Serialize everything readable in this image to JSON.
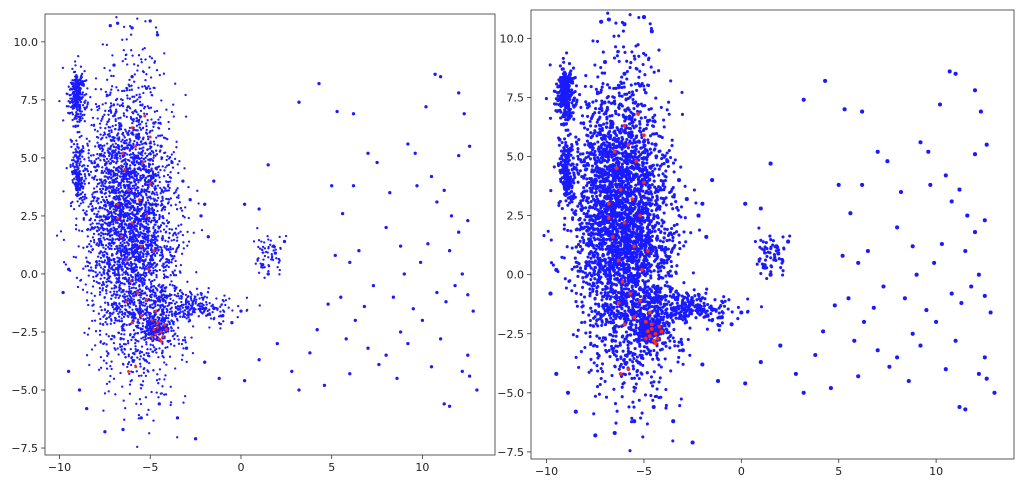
{
  "figure": {
    "panels": [
      "left",
      "right"
    ]
  },
  "chart_data": [
    {
      "type": "scatter",
      "panel": "left",
      "title": "",
      "xlabel": "",
      "ylabel": "",
      "xlim": [
        -10.8,
        14.0
      ],
      "ylim": [
        -7.8,
        11.2
      ],
      "x_ticks": [
        -10,
        -5,
        0,
        5,
        10
      ],
      "y_ticks": [
        -7.5,
        -5.0,
        -2.5,
        0.0,
        2.5,
        5.0,
        7.5,
        10.0
      ],
      "x_tick_labels": [
        "−10",
        "−5",
        "0",
        "5",
        "10"
      ],
      "y_tick_labels": [
        "−7.5",
        "−5.0",
        "−2.5",
        "0.0",
        "2.5",
        "5.0",
        "7.5",
        "10.0"
      ],
      "grid": false,
      "legend": "none",
      "series": [
        {
          "color": "#1a1aff",
          "points": [
            [
              -9.1,
              8.0
            ],
            [
              -9.0,
              7.6
            ],
            [
              -8.9,
              7.2
            ],
            [
              -9.0,
              5.0
            ],
            [
              -9.0,
              4.3
            ],
            [
              -8.8,
              3.8
            ],
            [
              -7.2,
              10.7
            ],
            [
              -6.8,
              10.8
            ],
            [
              -6.0,
              10.6
            ],
            [
              -5.0,
              10.9
            ],
            [
              -4.6,
              10.3
            ],
            [
              -7.0,
              9.0
            ],
            [
              -6.0,
              8.5
            ],
            [
              -5.2,
              8.0
            ],
            [
              -4.8,
              6.5
            ],
            [
              -4.4,
              5.5
            ],
            [
              -3.8,
              4.8
            ],
            [
              -3.2,
              4.0
            ],
            [
              -2.8,
              3.2
            ],
            [
              -2.2,
              2.5
            ],
            [
              -1.8,
              1.6
            ],
            [
              -1.5,
              4.0
            ],
            [
              -2.0,
              3.0
            ],
            [
              0.2,
              3.0
            ],
            [
              1.0,
              2.8
            ],
            [
              1.5,
              4.7
            ],
            [
              1.8,
              1.2
            ],
            [
              2.4,
              1.4
            ],
            [
              1.2,
              0.4
            ],
            [
              1.9,
              0.9
            ],
            [
              1.5,
              0.0
            ],
            [
              -4.5,
              -1.0
            ],
            [
              -3.0,
              -1.2
            ],
            [
              -2.0,
              -1.5
            ],
            [
              -1.0,
              -1.8
            ],
            [
              0.0,
              -1.6
            ],
            [
              -0.5,
              -2.1
            ],
            [
              -3.0,
              -3.2
            ],
            [
              -2.0,
              -3.8
            ],
            [
              -1.2,
              -4.5
            ],
            [
              0.2,
              -4.6
            ],
            [
              1.0,
              -3.7
            ],
            [
              2.0,
              -3.0
            ],
            [
              2.8,
              -4.2
            ],
            [
              3.2,
              -5.0
            ],
            [
              3.8,
              -3.4
            ],
            [
              4.2,
              -2.4
            ],
            [
              -2.5,
              -7.1
            ],
            [
              -3.5,
              -6.2
            ],
            [
              -4.5,
              -5.6
            ],
            [
              -5.5,
              -6.2
            ],
            [
              -6.5,
              -6.7
            ],
            [
              -7.5,
              -6.8
            ],
            [
              -8.5,
              -5.8
            ],
            [
              -8.9,
              -5.0
            ],
            [
              -9.5,
              -4.2
            ],
            [
              -9.8,
              -0.8
            ],
            [
              -9.5,
              0.2
            ],
            [
              3.2,
              7.4
            ],
            [
              4.3,
              8.2
            ],
            [
              5.3,
              7.0
            ],
            [
              6.2,
              6.9
            ],
            [
              5.6,
              2.6
            ],
            [
              5.0,
              3.8
            ],
            [
              6.2,
              3.8
            ],
            [
              6.5,
              1.0
            ],
            [
              6.0,
              0.5
            ],
            [
              5.5,
              -1.0
            ],
            [
              6.3,
              -2.0
            ],
            [
              5.8,
              -2.8
            ],
            [
              7.0,
              5.2
            ],
            [
              7.5,
              4.8
            ],
            [
              8.2,
              3.5
            ],
            [
              8.0,
              2.0
            ],
            [
              8.8,
              1.2
            ],
            [
              9.2,
              5.6
            ],
            [
              9.6,
              5.2
            ],
            [
              10.2,
              7.2
            ],
            [
              10.7,
              8.6
            ],
            [
              11.0,
              8.5
            ],
            [
              12.0,
              7.8
            ],
            [
              12.3,
              6.9
            ],
            [
              12.6,
              5.5
            ],
            [
              12.0,
              5.1
            ],
            [
              10.5,
              4.2
            ],
            [
              11.2,
              3.6
            ],
            [
              11.6,
              2.5
            ],
            [
              12.0,
              1.8
            ],
            [
              11.5,
              1.0
            ],
            [
              12.2,
              0.0
            ],
            [
              11.8,
              -0.5
            ],
            [
              10.8,
              -0.8
            ],
            [
              11.3,
              -1.2
            ],
            [
              12.5,
              -0.9
            ],
            [
              9.5,
              -1.5
            ],
            [
              10.0,
              -2.0
            ],
            [
              8.8,
              -2.5
            ],
            [
              9.2,
              -3.0
            ],
            [
              8.0,
              -3.5
            ],
            [
              7.6,
              -3.9
            ],
            [
              7.0,
              -3.2
            ],
            [
              8.6,
              -4.5
            ],
            [
              10.5,
              -4.0
            ],
            [
              11.2,
              -5.6
            ],
            [
              11.5,
              -5.7
            ],
            [
              12.2,
              -4.2
            ],
            [
              12.6,
              -4.4
            ],
            [
              13.0,
              -5.0
            ],
            [
              12.5,
              -3.5
            ],
            [
              9.9,
              0.5
            ],
            [
              10.3,
              1.3
            ],
            [
              9.0,
              0.0
            ],
            [
              8.4,
              -1.0
            ],
            [
              7.3,
              -0.5
            ],
            [
              4.8,
              -1.3
            ],
            [
              4.6,
              -4.8
            ],
            [
              6.0,
              -4.3
            ],
            [
              6.8,
              -1.4
            ],
            [
              5.2,
              0.8
            ],
            [
              10.8,
              3.1
            ],
            [
              12.5,
              2.3
            ],
            [
              11.0,
              -2.8
            ],
            [
              12.8,
              -1.6
            ],
            [
              9.7,
              3.8
            ]
          ]
        },
        {
          "color": "#ff2a10",
          "points": [
            [
              -6.0,
              6.3
            ],
            [
              -5.8,
              5.5
            ],
            [
              -5.4,
              4.8
            ],
            [
              -6.4,
              4.5
            ],
            [
              -5.0,
              3.9
            ],
            [
              -6.2,
              3.6
            ],
            [
              -5.6,
              3.2
            ],
            [
              -6.8,
              3.0
            ],
            [
              -5.2,
              2.5
            ],
            [
              -6.0,
              2.2
            ],
            [
              -6.6,
              1.6
            ],
            [
              -5.5,
              1.2
            ],
            [
              -4.8,
              1.0
            ],
            [
              -6.3,
              0.6
            ],
            [
              -5.1,
              0.2
            ],
            [
              -6.1,
              -0.3
            ],
            [
              -5.7,
              -0.8
            ],
            [
              -6.3,
              -1.2
            ],
            [
              -5.2,
              -1.1
            ],
            [
              -4.7,
              -1.6
            ],
            [
              -5.5,
              -1.8
            ],
            [
              -6.0,
              -2.1
            ],
            [
              -4.9,
              -2.0
            ],
            [
              -4.6,
              -2.3
            ],
            [
              -4.4,
              -2.5
            ],
            [
              -4.7,
              -2.6
            ],
            [
              -4.2,
              -2.2
            ],
            [
              -4.5,
              -2.8
            ],
            [
              -4.8,
              -2.4
            ],
            [
              -4.3,
              -2.7
            ],
            [
              -4.1,
              -2.4
            ],
            [
              -4.6,
              -2.1
            ],
            [
              -4.4,
              -2.9
            ],
            [
              -4.9,
              -2.7
            ],
            [
              -5.8,
              -4.0
            ],
            [
              -6.2,
              -4.2
            ],
            [
              -5.0,
              5.9
            ],
            [
              -6.5,
              5.2
            ],
            [
              -5.3,
              6.8
            ],
            [
              -6.8,
              2.4
            ]
          ]
        }
      ],
      "clusters": [
        {
          "color": "#1a1aff",
          "center": [
            -6.3,
            3.0
          ],
          "spread": [
            1.2,
            2.6
          ],
          "count": 2600
        },
        {
          "color": "#1a1aff",
          "center": [
            -5.4,
            -0.8
          ],
          "spread": [
            1.2,
            2.2
          ],
          "count": 900
        },
        {
          "color": "#1a1aff",
          "center": [
            -9.0,
            7.6
          ],
          "spread": [
            0.25,
            0.55
          ],
          "count": 260
        },
        {
          "color": "#1a1aff",
          "center": [
            -9.0,
            4.3
          ],
          "spread": [
            0.2,
            0.6
          ],
          "count": 160
        },
        {
          "color": "#1a1aff",
          "center": [
            -3.0,
            -1.5
          ],
          "spread": [
            1.3,
            0.35
          ],
          "count": 260
        },
        {
          "color": "#1a1aff",
          "center": [
            1.5,
            0.9
          ],
          "spread": [
            0.45,
            0.45
          ],
          "count": 60
        },
        {
          "color": "#1a1aff",
          "center": [
            -4.6,
            -2.3
          ],
          "spread": [
            0.35,
            0.3
          ],
          "count": 180
        }
      ]
    },
    {
      "type": "scatter",
      "panel": "right",
      "title": "",
      "xlabel": "",
      "ylabel": "",
      "xlim": [
        -10.8,
        14.0
      ],
      "ylim": [
        -7.8,
        11.2
      ],
      "x_ticks": [
        -10,
        -5,
        0,
        5,
        10
      ],
      "y_ticks": [
        -7.5,
        -5.0,
        -2.5,
        0.0,
        2.5,
        5.0,
        7.5,
        10.0
      ],
      "x_tick_labels": [
        "−10",
        "−5",
        "0",
        "5",
        "10"
      ],
      "y_tick_labels": [
        "−7.5",
        "−5.0",
        "−2.5",
        "0.0",
        "2.5",
        "5.0",
        "7.5",
        "10.0"
      ],
      "grid": false,
      "legend": "none",
      "same_data_as": "left"
    }
  ]
}
